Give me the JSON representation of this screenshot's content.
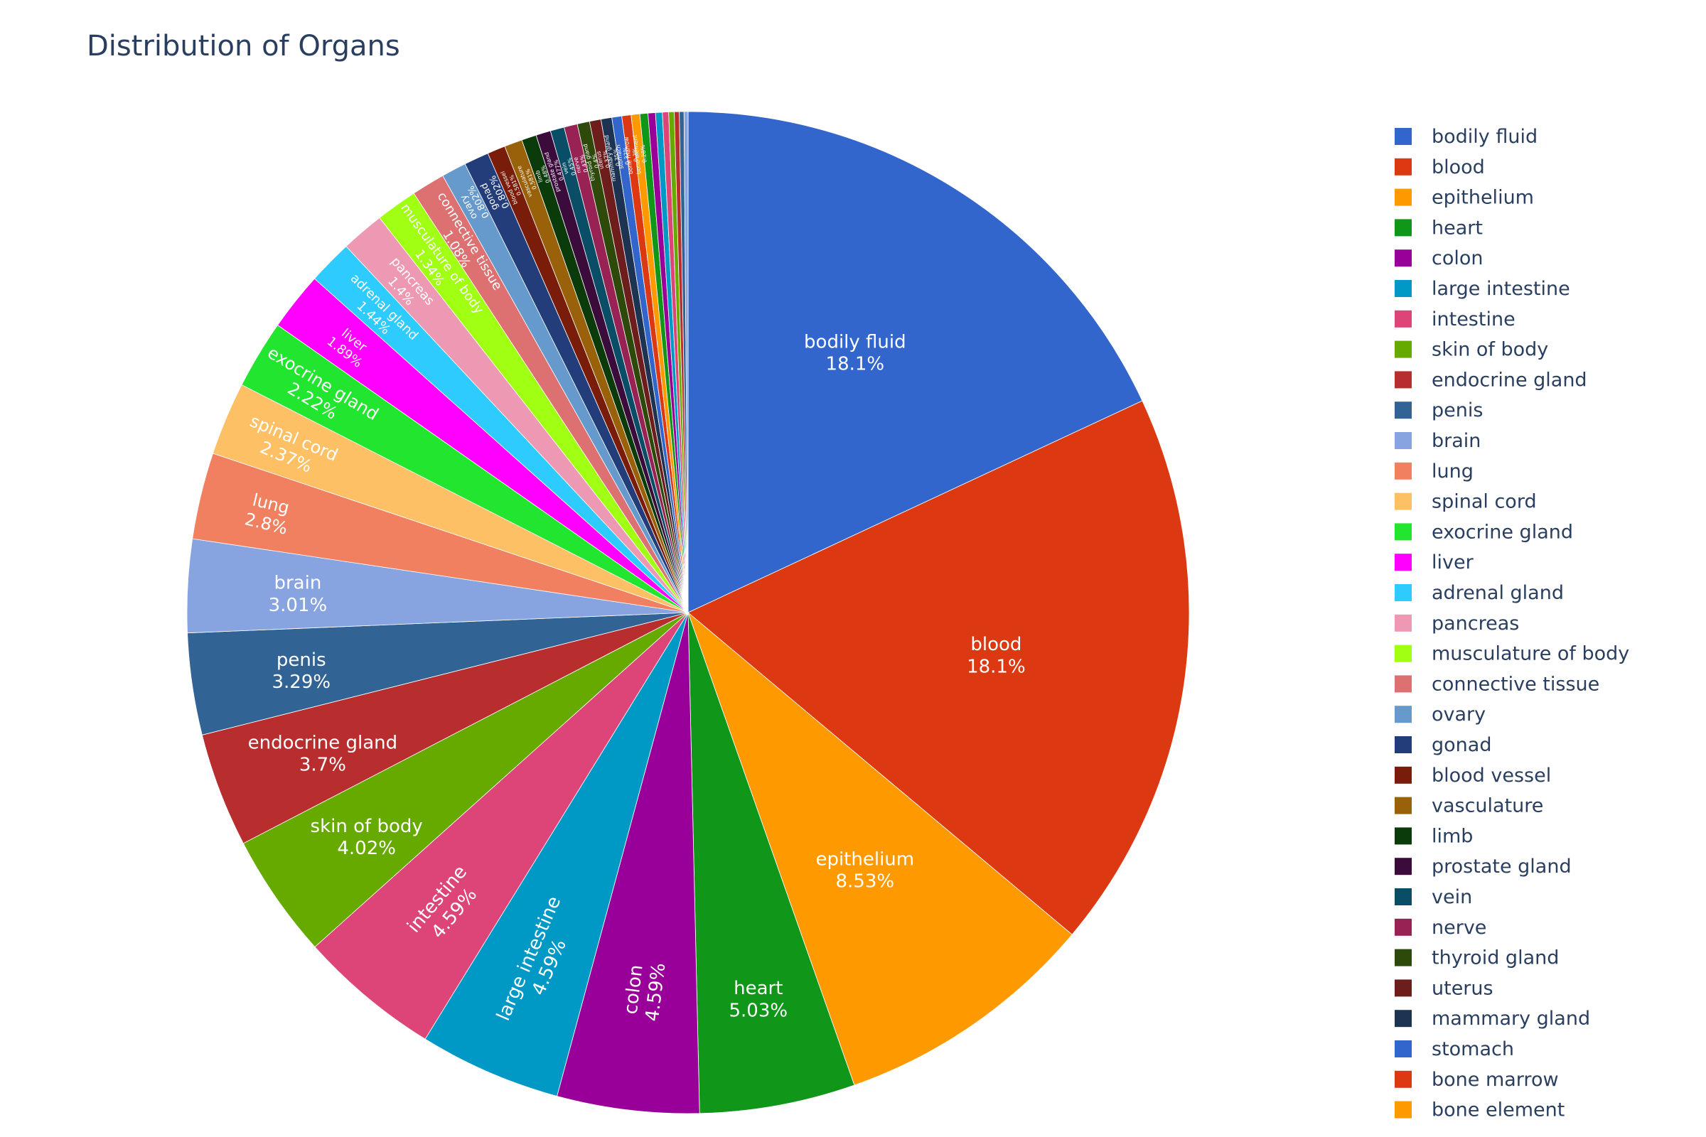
{
  "chart_data": {
    "type": "pie",
    "title": "Distribution of Organs",
    "direction": "clockwise",
    "sort": "descending",
    "start_angle_deg": 0,
    "legend_position": "right",
    "slices": [
      {
        "label": "bodily fluid",
        "value": 18.1,
        "pct_label": "18.1%",
        "color": "#3366cc"
      },
      {
        "label": "blood",
        "value": 18.1,
        "pct_label": "18.1%",
        "color": "#dc3912"
      },
      {
        "label": "epithelium",
        "value": 8.53,
        "pct_label": "8.53%",
        "color": "#ff9900"
      },
      {
        "label": "heart",
        "value": 5.03,
        "pct_label": "5.03%",
        "color": "#109618"
      },
      {
        "label": "colon",
        "value": 4.59,
        "pct_label": "4.59%",
        "color": "#990099"
      },
      {
        "label": "large intestine",
        "value": 4.59,
        "pct_label": "4.59%",
        "color": "#0099c6"
      },
      {
        "label": "intestine",
        "value": 4.59,
        "pct_label": "4.59%",
        "color": "#dd4477"
      },
      {
        "label": "skin of body",
        "value": 4.02,
        "pct_label": "4.02%",
        "color": "#66aa00"
      },
      {
        "label": "endocrine gland",
        "value": 3.7,
        "pct_label": "3.7%",
        "color": "#b82e2e"
      },
      {
        "label": "penis",
        "value": 3.29,
        "pct_label": "3.29%",
        "color": "#316395"
      },
      {
        "label": "brain",
        "value": 3.01,
        "pct_label": "3.01%",
        "color": "#87a3e0"
      },
      {
        "label": "lung",
        "value": 2.8,
        "pct_label": "2.8%",
        "color": "#f08060"
      },
      {
        "label": "spinal cord",
        "value": 2.37,
        "pct_label": "2.37%",
        "color": "#fec064"
      },
      {
        "label": "exocrine gland",
        "value": 2.22,
        "pct_label": "2.22%",
        "color": "#22e52f"
      },
      {
        "label": "liver",
        "value": 1.89,
        "pct_label": "1.89%",
        "color": "#ff00ff"
      },
      {
        "label": "adrenal gland",
        "value": 1.44,
        "pct_label": "1.44%",
        "color": "#2ecbff"
      },
      {
        "label": "pancreas",
        "value": 1.4,
        "pct_label": "1.4%",
        "color": "#ee99b4"
      },
      {
        "label": "musculature of body",
        "value": 1.34,
        "pct_label": "1.34%",
        "color": "#a0ff12"
      },
      {
        "label": "connective tissue",
        "value": 1.08,
        "pct_label": "1.08%",
        "color": "#dd7070"
      },
      {
        "label": "ovary",
        "value": 0.802,
        "pct_label": "0.802%",
        "color": "#6699cc"
      },
      {
        "label": "gonad",
        "value": 0.802,
        "pct_label": "0.802%",
        "color": "#223d7a"
      },
      {
        "label": "blood vessel",
        "value": 0.581,
        "pct_label": "0.581%",
        "color": "#7a1c0a"
      },
      {
        "label": "vasculature",
        "value": 0.581,
        "pct_label": "0.581%",
        "color": "#99620a"
      },
      {
        "label": "limb",
        "value": 0.48,
        "pct_label": "0.48%",
        "color": "#0b3b0b"
      },
      {
        "label": "prostate gland",
        "value": 0.477,
        "pct_label": "0.477%",
        "color": "#3b0b3b"
      },
      {
        "label": "vein",
        "value": 0.45,
        "pct_label": "0.45%",
        "color": "#0a4d66"
      },
      {
        "label": "nerve",
        "value": 0.43,
        "pct_label": "0.43%",
        "color": "#992255"
      },
      {
        "label": "thyroid gland",
        "value": 0.4,
        "pct_label": "0.4%",
        "color": "#2d4a0a"
      },
      {
        "label": "uterus",
        "value": 0.37,
        "pct_label": "0.37%",
        "color": "#6e1d1d"
      },
      {
        "label": "mammary gland",
        "value": 0.35,
        "pct_label": "0.35%",
        "color": "#1c3352"
      },
      {
        "label": "stomach",
        "value": 0.32,
        "pct_label": "0.32%",
        "color": "#3366cc"
      },
      {
        "label": "bone marrow",
        "value": 0.3,
        "pct_label": "0.3%",
        "color": "#dc3912"
      },
      {
        "label": "bone element",
        "value": 0.28,
        "pct_label": "0.28%",
        "color": "#ff9900"
      },
      {
        "label": "",
        "value": 0.26,
        "pct_label": "",
        "color": "#109618"
      },
      {
        "label": "",
        "value": 0.24,
        "pct_label": "",
        "color": "#990099"
      },
      {
        "label": "",
        "value": 0.22,
        "pct_label": "",
        "color": "#0099c6"
      },
      {
        "label": "",
        "value": 0.2,
        "pct_label": "",
        "color": "#dd4477"
      },
      {
        "label": "",
        "value": 0.18,
        "pct_label": "",
        "color": "#66aa00"
      },
      {
        "label": "",
        "value": 0.16,
        "pct_label": "",
        "color": "#b82e2e"
      },
      {
        "label": "",
        "value": 0.15,
        "pct_label": "",
        "color": "#316395"
      },
      {
        "label": "",
        "value": 0.13,
        "pct_label": "",
        "color": "#87a3e0"
      }
    ]
  }
}
